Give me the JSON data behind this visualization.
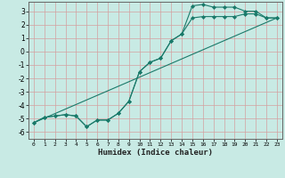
{
  "title": "",
  "xlabel": "Humidex (Indice chaleur)",
  "ylabel": "",
  "bg_color": "#c8eae4",
  "grid_color": "#aad4cc",
  "line_color": "#1a7a6a",
  "xlim": [
    -0.5,
    23.5
  ],
  "ylim": [
    -6.5,
    3.7
  ],
  "xticks": [
    0,
    1,
    2,
    3,
    4,
    5,
    6,
    7,
    8,
    9,
    10,
    11,
    12,
    13,
    14,
    15,
    16,
    17,
    18,
    19,
    20,
    21,
    22,
    23
  ],
  "yticks": [
    -6,
    -5,
    -4,
    -3,
    -2,
    -1,
    0,
    1,
    2,
    3
  ],
  "line1_x": [
    0,
    1,
    2,
    3,
    4,
    5,
    6,
    7,
    8,
    9,
    10,
    11,
    12,
    13,
    14,
    15,
    16,
    17,
    18,
    19,
    20,
    21,
    22,
    23
  ],
  "line1_y": [
    -5.3,
    -4.9,
    -4.8,
    -4.7,
    -4.8,
    -5.6,
    -5.1,
    -5.1,
    -4.6,
    -3.7,
    -1.5,
    -0.8,
    -0.5,
    0.8,
    1.3,
    2.5,
    2.6,
    2.6,
    2.6,
    2.6,
    2.8,
    2.8,
    2.5,
    2.5
  ],
  "line2_x": [
    0,
    1,
    2,
    3,
    4,
    5,
    6,
    7,
    8,
    9,
    10,
    11,
    12,
    13,
    14,
    15,
    16,
    17,
    18,
    19,
    20,
    21,
    22,
    23
  ],
  "line2_y": [
    -5.3,
    -4.9,
    -4.8,
    -4.7,
    -4.8,
    -5.6,
    -5.1,
    -5.1,
    -4.6,
    -3.7,
    -1.5,
    -0.8,
    -0.5,
    0.8,
    1.3,
    3.4,
    3.5,
    3.3,
    3.3,
    3.3,
    3.0,
    3.0,
    2.5,
    2.5
  ],
  "line3_x": [
    0,
    23
  ],
  "line3_y": [
    -5.3,
    2.5
  ],
  "marker_size": 2.0,
  "marker": "D"
}
